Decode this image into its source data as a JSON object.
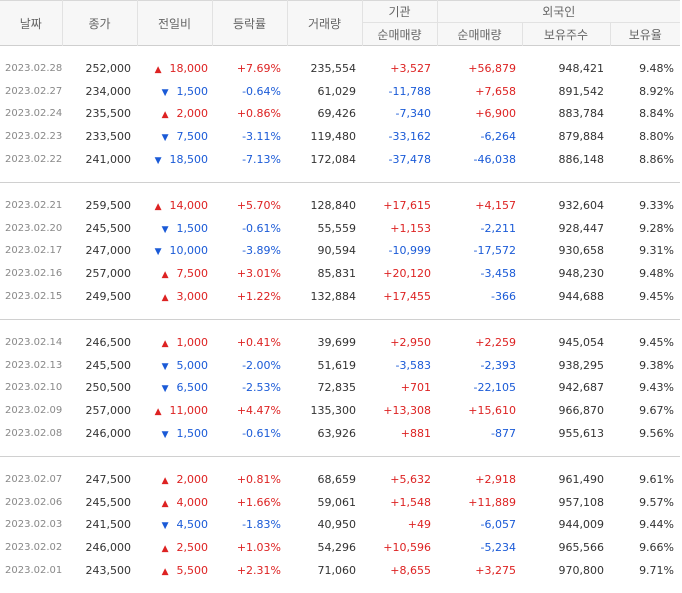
{
  "headers": {
    "date": "날짜",
    "close": "종가",
    "change": "전일비",
    "rate": "등락률",
    "volume": "거래량",
    "inst": "기관",
    "foreign": "외국인",
    "inst_net": "순매매량",
    "foreign_net": "순매매량",
    "foreign_hold": "보유주수",
    "foreign_ratio": "보유율"
  },
  "colors": {
    "up": "#dd2222",
    "down": "#1a5ad7"
  },
  "groups": [
    [
      {
        "date": "2023.02.28",
        "close": "252,000",
        "dir": "up",
        "change": "18,000",
        "rate": "+7.69%",
        "volume": "235,554",
        "inst": "+3,527",
        "foreign": "+56,879",
        "hold": "948,421",
        "ratio": "9.48%"
      },
      {
        "date": "2023.02.27",
        "close": "234,000",
        "dir": "down",
        "change": "1,500",
        "rate": "-0.64%",
        "volume": "61,029",
        "inst": "-11,788",
        "foreign": "+7,658",
        "hold": "891,542",
        "ratio": "8.92%"
      },
      {
        "date": "2023.02.24",
        "close": "235,500",
        "dir": "up",
        "change": "2,000",
        "rate": "+0.86%",
        "volume": "69,426",
        "inst": "-7,340",
        "foreign": "+6,900",
        "hold": "883,784",
        "ratio": "8.84%"
      },
      {
        "date": "2023.02.23",
        "close": "233,500",
        "dir": "down",
        "change": "7,500",
        "rate": "-3.11%",
        "volume": "119,480",
        "inst": "-33,162",
        "foreign": "-6,264",
        "hold": "879,884",
        "ratio": "8.80%"
      },
      {
        "date": "2023.02.22",
        "close": "241,000",
        "dir": "down",
        "change": "18,500",
        "rate": "-7.13%",
        "volume": "172,084",
        "inst": "-37,478",
        "foreign": "-46,038",
        "hold": "886,148",
        "ratio": "8.86%"
      }
    ],
    [
      {
        "date": "2023.02.21",
        "close": "259,500",
        "dir": "up",
        "change": "14,000",
        "rate": "+5.70%",
        "volume": "128,840",
        "inst": "+17,615",
        "foreign": "+4,157",
        "hold": "932,604",
        "ratio": "9.33%"
      },
      {
        "date": "2023.02.20",
        "close": "245,500",
        "dir": "down",
        "change": "1,500",
        "rate": "-0.61%",
        "volume": "55,559",
        "inst": "+1,153",
        "foreign": "-2,211",
        "hold": "928,447",
        "ratio": "9.28%"
      },
      {
        "date": "2023.02.17",
        "close": "247,000",
        "dir": "down",
        "change": "10,000",
        "rate": "-3.89%",
        "volume": "90,594",
        "inst": "-10,999",
        "foreign": "-17,572",
        "hold": "930,658",
        "ratio": "9.31%"
      },
      {
        "date": "2023.02.16",
        "close": "257,000",
        "dir": "up",
        "change": "7,500",
        "rate": "+3.01%",
        "volume": "85,831",
        "inst": "+20,120",
        "foreign": "-3,458",
        "hold": "948,230",
        "ratio": "9.48%"
      },
      {
        "date": "2023.02.15",
        "close": "249,500",
        "dir": "up",
        "change": "3,000",
        "rate": "+1.22%",
        "volume": "132,884",
        "inst": "+17,455",
        "foreign": "-366",
        "hold": "944,688",
        "ratio": "9.45%"
      }
    ],
    [
      {
        "date": "2023.02.14",
        "close": "246,500",
        "dir": "up",
        "change": "1,000",
        "rate": "+0.41%",
        "volume": "39,699",
        "inst": "+2,950",
        "foreign": "+2,259",
        "hold": "945,054",
        "ratio": "9.45%"
      },
      {
        "date": "2023.02.13",
        "close": "245,500",
        "dir": "down",
        "change": "5,000",
        "rate": "-2.00%",
        "volume": "51,619",
        "inst": "-3,583",
        "foreign": "-2,393",
        "hold": "938,295",
        "ratio": "9.38%"
      },
      {
        "date": "2023.02.10",
        "close": "250,500",
        "dir": "down",
        "change": "6,500",
        "rate": "-2.53%",
        "volume": "72,835",
        "inst": "+701",
        "foreign": "-22,105",
        "hold": "942,687",
        "ratio": "9.43%"
      },
      {
        "date": "2023.02.09",
        "close": "257,000",
        "dir": "up",
        "change": "11,000",
        "rate": "+4.47%",
        "volume": "135,300",
        "inst": "+13,308",
        "foreign": "+15,610",
        "hold": "966,870",
        "ratio": "9.67%"
      },
      {
        "date": "2023.02.08",
        "close": "246,000",
        "dir": "down",
        "change": "1,500",
        "rate": "-0.61%",
        "volume": "63,926",
        "inst": "+881",
        "foreign": "-877",
        "hold": "955,613",
        "ratio": "9.56%"
      }
    ],
    [
      {
        "date": "2023.02.07",
        "close": "247,500",
        "dir": "up",
        "change": "2,000",
        "rate": "+0.81%",
        "volume": "68,659",
        "inst": "+5,632",
        "foreign": "+2,918",
        "hold": "961,490",
        "ratio": "9.61%"
      },
      {
        "date": "2023.02.06",
        "close": "245,500",
        "dir": "up",
        "change": "4,000",
        "rate": "+1.66%",
        "volume": "59,061",
        "inst": "+1,548",
        "foreign": "+11,889",
        "hold": "957,108",
        "ratio": "9.57%"
      },
      {
        "date": "2023.02.03",
        "close": "241,500",
        "dir": "down",
        "change": "4,500",
        "rate": "-1.83%",
        "volume": "40,950",
        "inst": "+49",
        "foreign": "-6,057",
        "hold": "944,009",
        "ratio": "9.44%"
      },
      {
        "date": "2023.02.02",
        "close": "246,000",
        "dir": "up",
        "change": "2,500",
        "rate": "+1.03%",
        "volume": "54,296",
        "inst": "+10,596",
        "foreign": "-5,234",
        "hold": "965,566",
        "ratio": "9.66%"
      },
      {
        "date": "2023.02.01",
        "close": "243,500",
        "dir": "up",
        "change": "5,500",
        "rate": "+2.31%",
        "volume": "71,060",
        "inst": "+8,655",
        "foreign": "+3,275",
        "hold": "970,800",
        "ratio": "9.71%"
      }
    ]
  ]
}
